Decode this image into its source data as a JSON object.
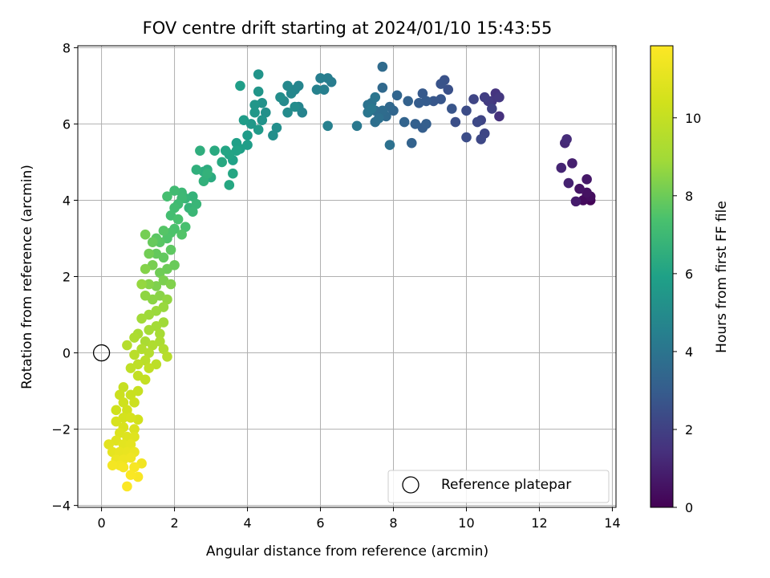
{
  "chart_data": {
    "type": "scatter",
    "title": "FOV centre drift starting at 2024/01/10 15:43:55",
    "xlabel": "Angular distance from reference (arcmin)",
    "ylabel": "Rotation from reference (arcmin)",
    "colorbar_label": "Hours from first FF file",
    "xlim": [
      -0.65,
      14.1
    ],
    "ylim": [
      -4.05,
      8.05
    ],
    "clim": [
      0,
      11.85
    ],
    "x_ticks": [
      0,
      2,
      4,
      6,
      8,
      10,
      12,
      14
    ],
    "y_ticks": [
      -4,
      -2,
      0,
      2,
      4,
      6,
      8
    ],
    "colorbar_ticks": [
      0,
      2,
      4,
      6,
      8,
      10
    ],
    "x_tick_labels": [
      "0",
      "2",
      "4",
      "6",
      "8",
      "10",
      "12",
      "14"
    ],
    "y_tick_labels": [
      "−4",
      "−2",
      "0",
      "2",
      "4",
      "6",
      "8"
    ],
    "colorbar_tick_labels": [
      "0",
      "2",
      "4",
      "6",
      "8",
      "10"
    ],
    "colormap": "viridis",
    "grid": true,
    "legend": {
      "location": "lower right",
      "label": "Reference platepar"
    },
    "reference_point": {
      "x": 0,
      "y": 0
    },
    "points": [
      [
        13.4,
        4.0,
        0.1
      ],
      [
        13.3,
        4.1,
        0.2
      ],
      [
        13.2,
        4.0,
        0.3
      ],
      [
        13.4,
        4.1,
        0.4
      ],
      [
        13.3,
        4.2,
        0.5
      ],
      [
        13.1,
        4.3,
        0.6
      ],
      [
        13.3,
        4.55,
        0.7
      ],
      [
        13.0,
        3.97,
        0.8
      ],
      [
        12.9,
        4.97,
        0.9
      ],
      [
        12.8,
        4.45,
        1.0
      ],
      [
        12.6,
        4.85,
        1.1
      ],
      [
        12.7,
        5.5,
        1.2
      ],
      [
        12.75,
        5.6,
        1.3
      ],
      [
        10.9,
        6.2,
        1.45
      ],
      [
        10.8,
        6.8,
        1.55
      ],
      [
        10.7,
        6.6,
        1.65
      ],
      [
        10.9,
        6.7,
        1.7
      ],
      [
        10.6,
        6.6,
        1.8
      ],
      [
        10.5,
        6.7,
        1.9
      ],
      [
        10.7,
        6.4,
        2.0
      ],
      [
        10.4,
        6.1,
        2.1
      ],
      [
        10.2,
        6.65,
        2.15
      ],
      [
        10.5,
        5.75,
        2.2
      ],
      [
        10.4,
        5.6,
        2.25
      ],
      [
        10.3,
        6.05,
        2.3
      ],
      [
        10.0,
        6.35,
        2.4
      ],
      [
        10.0,
        5.65,
        2.45
      ],
      [
        9.7,
        6.05,
        2.5
      ],
      [
        9.5,
        6.9,
        2.55
      ],
      [
        9.4,
        7.15,
        2.6
      ],
      [
        9.3,
        7.05,
        2.65
      ],
      [
        9.6,
        6.4,
        2.7
      ],
      [
        9.3,
        6.65,
        2.75
      ],
      [
        9.1,
        6.6,
        2.8
      ],
      [
        8.8,
        6.8,
        2.9
      ],
      [
        8.9,
        6.6,
        2.95
      ],
      [
        8.7,
        6.55,
        3.0
      ],
      [
        8.8,
        5.9,
        3.05
      ],
      [
        8.9,
        6.0,
        3.1
      ],
      [
        8.6,
        6.0,
        3.15
      ],
      [
        8.4,
        6.6,
        3.2
      ],
      [
        8.5,
        5.5,
        3.25
      ],
      [
        8.3,
        6.05,
        3.3
      ],
      [
        8.1,
        6.75,
        3.35
      ],
      [
        8.0,
        6.35,
        3.4
      ],
      [
        7.9,
        6.45,
        3.45
      ],
      [
        7.7,
        6.95,
        3.5
      ],
      [
        7.8,
        6.2,
        3.55
      ],
      [
        7.7,
        7.5,
        3.6
      ],
      [
        7.7,
        6.35,
        3.65
      ],
      [
        7.5,
        6.35,
        3.7
      ],
      [
        7.5,
        6.05,
        3.75
      ],
      [
        7.6,
        6.15,
        3.8
      ],
      [
        7.9,
        5.45,
        3.85
      ],
      [
        7.4,
        6.55,
        3.9
      ],
      [
        7.3,
        6.5,
        3.95
      ],
      [
        7.5,
        6.7,
        4.0
      ],
      [
        7.3,
        6.3,
        4.05
      ],
      [
        7.4,
        6.4,
        4.1
      ],
      [
        7.0,
        5.95,
        4.15
      ],
      [
        6.3,
        7.1,
        4.3
      ],
      [
        6.2,
        7.2,
        4.35
      ],
      [
        6.0,
        7.2,
        4.4
      ],
      [
        6.1,
        6.9,
        4.45
      ],
      [
        6.2,
        5.95,
        4.5
      ],
      [
        5.9,
        6.9,
        4.55
      ],
      [
        5.5,
        6.3,
        4.6
      ],
      [
        5.4,
        6.45,
        4.65
      ],
      [
        5.4,
        7.0,
        4.7
      ],
      [
        5.3,
        6.9,
        4.75
      ],
      [
        5.2,
        6.8,
        4.8
      ],
      [
        5.1,
        7.0,
        4.85
      ],
      [
        5.0,
        6.6,
        4.9
      ],
      [
        5.1,
        6.3,
        4.95
      ],
      [
        5.3,
        6.45,
        5.0
      ],
      [
        4.9,
        6.7,
        5.05
      ],
      [
        4.8,
        5.9,
        5.1
      ],
      [
        4.7,
        5.7,
        5.15
      ],
      [
        4.5,
        6.3,
        5.2
      ],
      [
        4.4,
        6.55,
        5.25
      ],
      [
        4.4,
        6.1,
        5.3
      ],
      [
        4.3,
        7.3,
        5.35
      ],
      [
        4.3,
        6.85,
        5.4
      ],
      [
        4.2,
        6.5,
        5.45
      ],
      [
        4.2,
        6.3,
        5.5
      ],
      [
        4.1,
        6.0,
        5.55
      ],
      [
        4.3,
        5.85,
        5.6
      ],
      [
        4.0,
        5.7,
        5.65
      ],
      [
        3.9,
        6.1,
        5.7
      ],
      [
        4.0,
        5.45,
        5.75
      ],
      [
        3.8,
        7.0,
        5.8
      ],
      [
        3.8,
        5.35,
        5.85
      ],
      [
        3.7,
        5.5,
        5.9
      ],
      [
        3.6,
        5.05,
        5.95
      ],
      [
        3.7,
        5.3,
        6.0
      ],
      [
        3.5,
        5.2,
        6.05
      ],
      [
        3.4,
        5.3,
        6.1
      ],
      [
        3.6,
        4.7,
        6.15
      ],
      [
        3.5,
        4.4,
        6.2
      ],
      [
        3.3,
        5.0,
        6.25
      ],
      [
        3.1,
        5.3,
        6.3
      ],
      [
        3.0,
        4.6,
        6.35
      ],
      [
        2.9,
        4.8,
        6.4
      ],
      [
        2.8,
        4.75,
        6.45
      ],
      [
        2.7,
        5.3,
        6.5
      ],
      [
        2.6,
        4.8,
        6.55
      ],
      [
        2.8,
        4.5,
        6.6
      ],
      [
        2.9,
        4.7,
        6.65
      ],
      [
        2.5,
        4.1,
        6.7
      ],
      [
        2.4,
        3.8,
        6.75
      ],
      [
        2.3,
        4.05,
        6.8
      ],
      [
        2.6,
        3.9,
        6.85
      ],
      [
        2.5,
        3.7,
        6.9
      ],
      [
        2.2,
        4.2,
        6.95
      ],
      [
        2.2,
        4.05,
        7.0
      ],
      [
        2.1,
        3.9,
        7.05
      ],
      [
        2.0,
        4.25,
        7.1
      ],
      [
        2.0,
        3.8,
        7.15
      ],
      [
        1.9,
        3.6,
        7.2
      ],
      [
        1.8,
        4.1,
        7.25
      ],
      [
        2.3,
        3.3,
        7.3
      ],
      [
        2.1,
        3.5,
        7.35
      ],
      [
        2.0,
        3.25,
        7.4
      ],
      [
        1.9,
        3.15,
        7.45
      ],
      [
        1.8,
        3.0,
        7.5
      ],
      [
        2.2,
        3.1,
        7.55
      ],
      [
        1.7,
        3.2,
        7.6
      ],
      [
        1.6,
        2.9,
        7.65
      ],
      [
        1.5,
        3.0,
        7.7
      ],
      [
        1.9,
        2.7,
        7.75
      ],
      [
        1.7,
        2.5,
        7.8
      ],
      [
        1.5,
        2.6,
        7.85
      ],
      [
        1.4,
        2.9,
        7.9
      ],
      [
        2.0,
        2.3,
        7.95
      ],
      [
        1.8,
        2.2,
        8.0
      ],
      [
        1.6,
        2.1,
        8.05
      ],
      [
        1.3,
        2.6,
        8.1
      ],
      [
        1.2,
        3.1,
        8.15
      ],
      [
        1.4,
        2.3,
        8.2
      ],
      [
        1.7,
        1.9,
        8.25
      ],
      [
        1.5,
        1.75,
        8.3
      ],
      [
        1.9,
        1.8,
        8.35
      ],
      [
        1.2,
        2.2,
        8.4
      ],
      [
        1.3,
        1.8,
        8.45
      ],
      [
        1.6,
        1.5,
        8.5
      ],
      [
        1.4,
        1.4,
        8.55
      ],
      [
        1.2,
        1.5,
        8.6
      ],
      [
        1.8,
        1.4,
        8.65
      ],
      [
        1.1,
        1.8,
        8.7
      ],
      [
        1.7,
        1.2,
        8.75
      ],
      [
        1.5,
        1.1,
        8.8
      ],
      [
        1.3,
        1.0,
        8.85
      ],
      [
        1.7,
        0.8,
        8.9
      ],
      [
        1.1,
        0.9,
        8.95
      ],
      [
        1.5,
        0.7,
        9.0
      ],
      [
        1.3,
        0.6,
        9.05
      ],
      [
        1.6,
        0.5,
        9.1
      ],
      [
        1.0,
        0.5,
        9.15
      ],
      [
        1.2,
        0.3,
        9.2
      ],
      [
        1.6,
        0.3,
        9.25
      ],
      [
        0.9,
        0.4,
        9.3
      ],
      [
        1.4,
        0.2,
        9.35
      ],
      [
        1.7,
        0.1,
        9.4
      ],
      [
        1.1,
        0.1,
        9.45
      ],
      [
        1.3,
        0.0,
        9.5
      ],
      [
        0.7,
        0.2,
        9.55
      ],
      [
        1.8,
        -0.1,
        9.6
      ],
      [
        0.9,
        -0.05,
        9.65
      ],
      [
        1.2,
        -0.2,
        9.7
      ],
      [
        1.5,
        -0.3,
        9.75
      ],
      [
        1.0,
        -0.3,
        9.8
      ],
      [
        0.8,
        -0.4,
        9.85
      ],
      [
        1.3,
        -0.4,
        9.9
      ],
      [
        1.0,
        -0.6,
        9.95
      ],
      [
        1.2,
        -0.7,
        10.0
      ],
      [
        0.6,
        -0.9,
        10.05
      ],
      [
        1.0,
        -1.0,
        10.1
      ],
      [
        0.8,
        -1.1,
        10.15
      ],
      [
        0.5,
        -1.1,
        10.2
      ],
      [
        0.9,
        -1.3,
        10.25
      ],
      [
        0.6,
        -1.3,
        10.3
      ],
      [
        0.4,
        -1.5,
        10.35
      ],
      [
        0.7,
        -1.5,
        10.4
      ],
      [
        1.0,
        -1.75,
        10.45
      ],
      [
        0.6,
        -1.7,
        10.5
      ],
      [
        0.8,
        -1.7,
        10.55
      ],
      [
        0.4,
        -1.8,
        10.6
      ],
      [
        0.6,
        -1.95,
        10.65
      ],
      [
        0.9,
        -2.0,
        10.7
      ],
      [
        0.5,
        -2.1,
        10.75
      ],
      [
        0.7,
        -2.2,
        10.8
      ],
      [
        0.9,
        -2.2,
        10.85
      ],
      [
        0.4,
        -2.3,
        10.9
      ],
      [
        0.2,
        -2.4,
        10.95
      ],
      [
        0.6,
        -2.4,
        11.0
      ],
      [
        0.8,
        -2.4,
        11.05
      ],
      [
        0.3,
        -2.6,
        11.1
      ],
      [
        0.5,
        -2.6,
        11.15
      ],
      [
        0.7,
        -2.6,
        11.2
      ],
      [
        0.9,
        -2.6,
        11.25
      ],
      [
        0.4,
        -2.8,
        11.3
      ],
      [
        0.6,
        -2.8,
        11.35
      ],
      [
        0.8,
        -2.75,
        11.4
      ],
      [
        1.1,
        -2.9,
        11.45
      ],
      [
        0.5,
        -2.95,
        11.5
      ],
      [
        0.3,
        -2.95,
        11.55
      ],
      [
        0.6,
        -3.0,
        11.6
      ],
      [
        0.9,
        -3.0,
        11.65
      ],
      [
        1.0,
        -3.25,
        11.7
      ],
      [
        0.8,
        -3.2,
        11.75
      ],
      [
        0.7,
        -3.5,
        11.8
      ]
    ]
  }
}
